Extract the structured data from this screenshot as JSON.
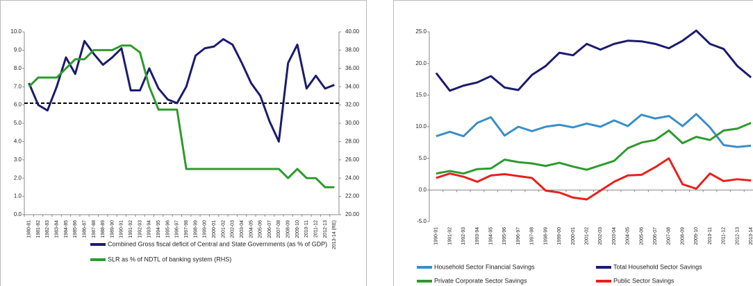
{
  "chart_data": [
    {
      "type": "line",
      "categories": [
        "1980-81",
        "1981-82",
        "1982-83",
        "1983-84",
        "1984-85",
        "1985-86",
        "1986-87",
        "1987-88",
        "1988-89",
        "1989-90",
        "1990-91",
        "1991-92",
        "1992-93",
        "1993-94",
        "1994-95",
        "1995-96",
        "1996-97",
        "1997-98",
        "1998-99",
        "1999-00",
        "2000-01",
        "2001-02",
        "2002-03",
        "2003-04",
        "2004-05",
        "2005-06",
        "2006-07",
        "2007-08",
        "2008-09",
        "2009-10",
        "2010-11",
        "2011-12",
        "2012-13",
        "2013-14 (RE)"
      ],
      "series": [
        {
          "name": "Combined Gross fiscal deficit of Central and State Governments (as % of GDP)",
          "color": "#1b1b6f",
          "values": [
            7.2,
            6.0,
            5.7,
            7.0,
            8.6,
            7.7,
            9.5,
            8.8,
            8.2,
            8.6,
            9.1,
            6.8,
            6.8,
            8.0,
            6.9,
            6.3,
            6.1,
            7.0,
            8.7,
            9.1,
            9.2,
            9.6,
            9.3,
            8.3,
            7.2,
            6.5,
            5.1,
            4.0,
            8.3,
            9.3,
            6.9,
            7.6,
            6.9,
            7.1
          ]
        },
        {
          "name": "SLR as % of NDTL of banking system (RHS)",
          "color": "#2e9a2e",
          "axis": "y2",
          "values": [
            34,
            35,
            35,
            35,
            36,
            37,
            37,
            38,
            38,
            38,
            38.5,
            38.5,
            37.75,
            34,
            31.5,
            31.5,
            31.5,
            25,
            25,
            25,
            25,
            25,
            25,
            25,
            25,
            25,
            25,
            25,
            24,
            25,
            24,
            24,
            23,
            23
          ]
        }
      ],
      "reference_line": 6.1,
      "ylim": [
        0,
        10
      ],
      "yticks": [
        {
          "value": 0,
          "label": "0.0"
        },
        {
          "value": 1,
          "label": "1.0"
        },
        {
          "value": 2,
          "label": "2.0"
        },
        {
          "value": 3,
          "label": "3.0"
        },
        {
          "value": 4,
          "label": "4.0"
        },
        {
          "value": 5,
          "label": "5.0"
        },
        {
          "value": 6,
          "label": "6.0"
        },
        {
          "value": 7,
          "label": "7.0"
        },
        {
          "value": 8,
          "label": "8.0"
        },
        {
          "value": 9,
          "label": "9.0"
        },
        {
          "value": 10,
          "label": "10.0"
        }
      ],
      "y2lim": [
        20,
        40
      ],
      "y2ticks": [
        {
          "value": 20,
          "label": "20.00"
        },
        {
          "value": 22,
          "label": "22.00"
        },
        {
          "value": 24,
          "label": "24.00"
        },
        {
          "value": 26,
          "label": "26.00"
        },
        {
          "value": 28,
          "label": "28.00"
        },
        {
          "value": 30,
          "label": "30.00"
        },
        {
          "value": 32,
          "label": "32.00"
        },
        {
          "value": 34,
          "label": "34.00"
        },
        {
          "value": 36,
          "label": "36.00"
        },
        {
          "value": 38,
          "label": "38.00"
        },
        {
          "value": 40,
          "label": "40.00"
        }
      ],
      "grid": false
    },
    {
      "type": "line",
      "categories": [
        "1990-91",
        "1991-92",
        "1992-93",
        "1993-94",
        "1994-95",
        "1995-96",
        "1996-97",
        "1997-98",
        "1998-99",
        "1999-00",
        "2000-01",
        "2001-02",
        "2002-03",
        "2003-04",
        "2004-05",
        "2005-06",
        "2006-07",
        "2007-08",
        "2008-09",
        "2009-10",
        "2010-11",
        "2011-12",
        "2012-13",
        "2013-14"
      ],
      "series": [
        {
          "name": "Household Sector Financial Savings",
          "color": "#3a8ec8",
          "values": [
            8.5,
            9.2,
            8.5,
            10.6,
            11.5,
            8.6,
            10.0,
            9.3,
            10.0,
            10.3,
            9.9,
            10.5,
            10.0,
            11.0,
            10.1,
            11.9,
            11.3,
            11.7,
            10.1,
            12.0,
            9.9,
            7.1,
            6.8,
            7.0
          ]
        },
        {
          "name": "Total Household Sector Savings",
          "color": "#1b1b6f",
          "values": [
            18.5,
            15.7,
            16.5,
            17.0,
            18.0,
            16.2,
            15.8,
            18.2,
            19.6,
            21.7,
            21.3,
            23.1,
            22.2,
            23.1,
            23.6,
            23.5,
            23.1,
            22.4,
            23.6,
            25.2,
            23.1,
            22.3,
            19.6,
            17.8
          ]
        },
        {
          "name": "Private Corporate Sector Savings",
          "color": "#2e9a2e",
          "values": [
            2.6,
            3.0,
            2.6,
            3.3,
            3.4,
            4.8,
            4.4,
            4.2,
            3.8,
            4.3,
            3.7,
            3.2,
            3.9,
            4.6,
            6.6,
            7.5,
            7.9,
            9.4,
            7.4,
            8.4,
            7.9,
            9.4,
            9.7,
            10.6
          ]
        },
        {
          "name": "Public Sector Savings",
          "color": "#e8201c",
          "values": [
            1.9,
            2.6,
            2.1,
            1.3,
            2.3,
            2.5,
            2.2,
            1.9,
            -0.1,
            -0.4,
            -1.2,
            -1.5,
            -0.1,
            1.3,
            2.3,
            2.4,
            3.6,
            5.0,
            0.9,
            0.2,
            2.6,
            1.4,
            1.7,
            1.5
          ]
        }
      ],
      "ylim": [
        -5,
        25
      ],
      "yticks": [
        {
          "value": -5,
          "label": "-5.0"
        },
        {
          "value": 0,
          "label": "0.0"
        },
        {
          "value": 5,
          "label": "5.0"
        },
        {
          "value": 10,
          "label": "10.0"
        },
        {
          "value": 15,
          "label": "15.0"
        },
        {
          "value": 20,
          "label": "20.0"
        },
        {
          "value": 25,
          "label": "25.0"
        }
      ],
      "grid": false
    }
  ]
}
